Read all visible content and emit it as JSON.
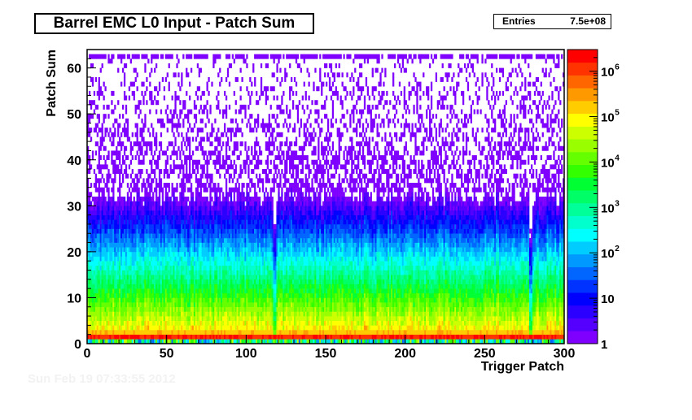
{
  "chart_data": {
    "type": "heatmap",
    "title": "Barrel EMC L0 Input - Patch Sum",
    "xlabel": "Trigger Patch",
    "ylabel": "Patch Sum",
    "xlim": [
      0,
      300
    ],
    "ylim": [
      0,
      64
    ],
    "x_ticks": [
      0,
      50,
      100,
      150,
      200,
      250,
      300
    ],
    "y_ticks": [
      0,
      10,
      20,
      30,
      40,
      50,
      60
    ],
    "z_scale": "log",
    "z_range": [
      1,
      3000000
    ],
    "z_ticks": [
      {
        "value": 1,
        "base": "1",
        "exp": ""
      },
      {
        "value": 10,
        "base": "10",
        "exp": ""
      },
      {
        "value": 100,
        "base": "10",
        "exp": "2"
      },
      {
        "value": 1000,
        "base": "10",
        "exp": "3"
      },
      {
        "value": 10000,
        "base": "10",
        "exp": "4"
      },
      {
        "value": 100000,
        "base": "10",
        "exp": "5"
      },
      {
        "value": 1000000,
        "base": "10",
        "exp": "6"
      }
    ],
    "stats": {
      "label": "Entries",
      "value": "7.5e+08"
    },
    "palette": [
      "#7f00ff",
      "#5500ff",
      "#2b00ff",
      "#0000ff",
      "#0033ff",
      "#0066ff",
      "#0099ff",
      "#00ccff",
      "#00ffff",
      "#00ffcc",
      "#00ff99",
      "#00ff66",
      "#00ff33",
      "#33ff00",
      "#66ff00",
      "#99ff00",
      "#ccff00",
      "#ffff00",
      "#ffcc00",
      "#ff9900",
      "#ff6600",
      "#ff3300",
      "#ff0000"
    ],
    "grid": false
  },
  "footer_text": "Sun Feb 19 07:33:55 2012"
}
